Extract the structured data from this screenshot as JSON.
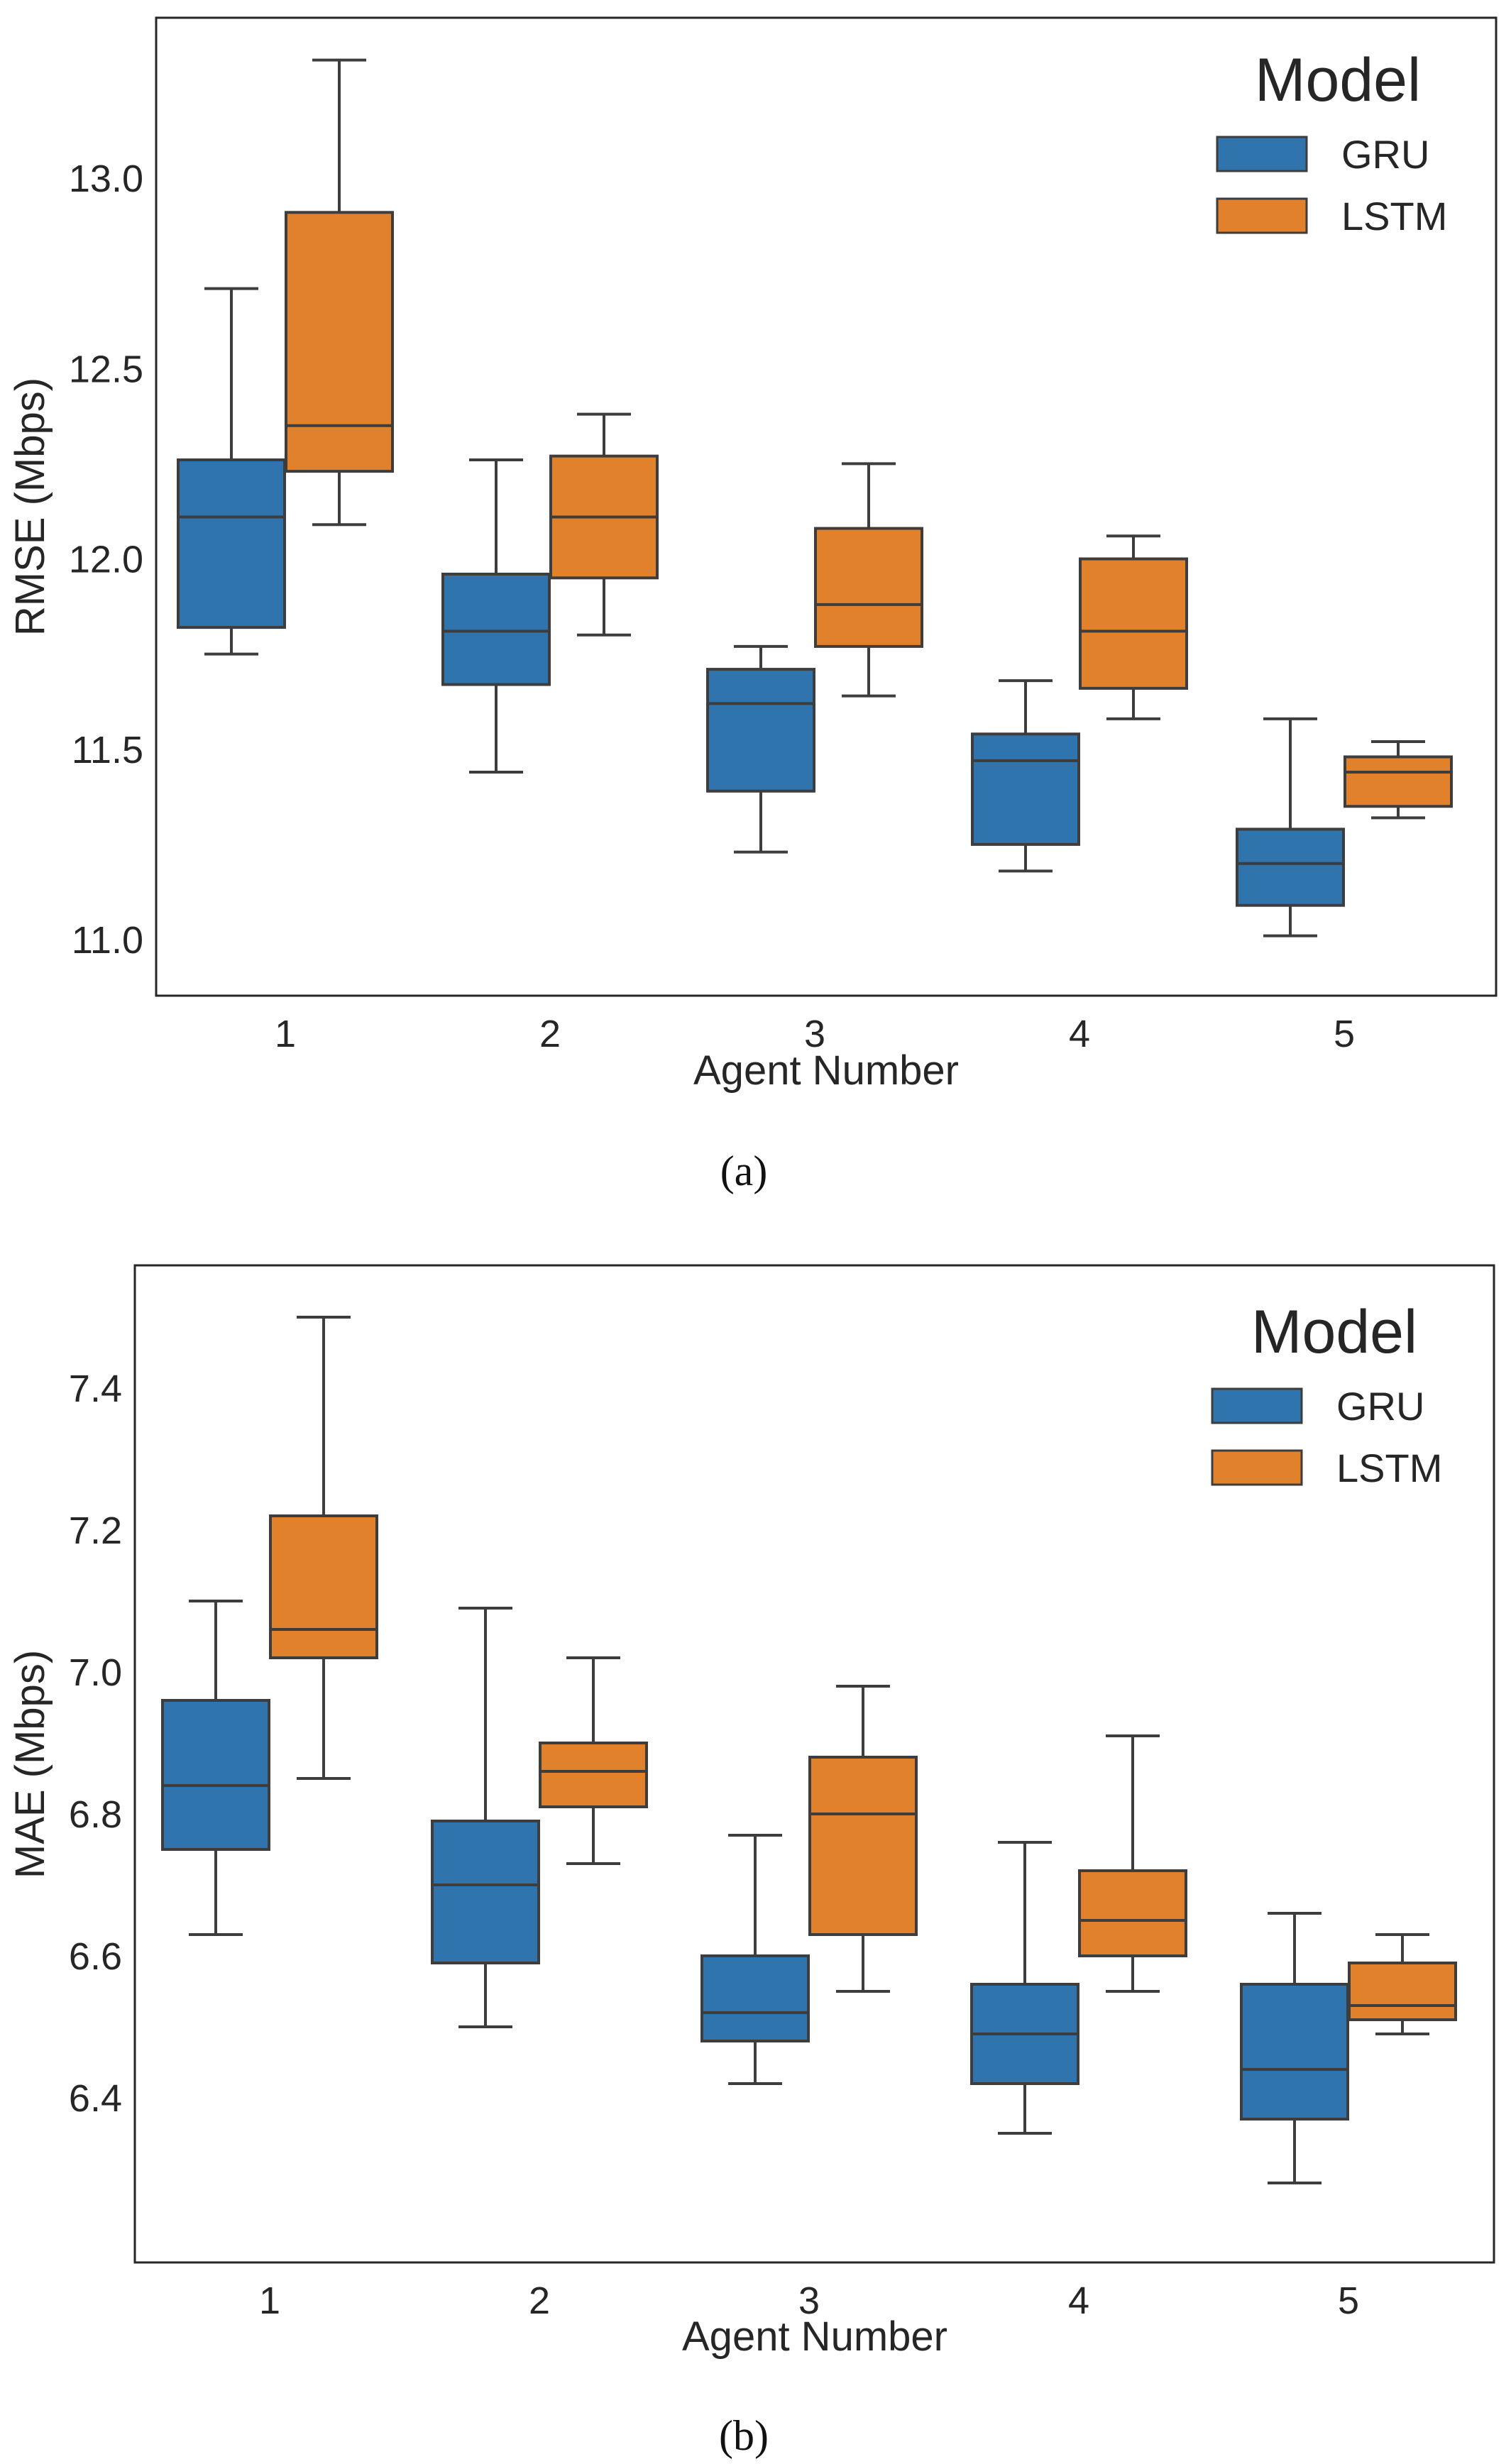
{
  "chart_data": [
    {
      "type": "box",
      "caption": "(a)",
      "xlabel": "Agent Number",
      "ylabel": "RMSE (Mbps)",
      "ylim": [
        10.9,
        13.42
      ],
      "yticks": [
        11.0,
        11.5,
        12.0,
        12.5,
        13.0
      ],
      "ytick_labels": [
        "11.0",
        "11.5",
        "12.0",
        "12.5",
        "13.0"
      ],
      "categories": [
        "1",
        "2",
        "3",
        "4",
        "5"
      ],
      "legend": {
        "title": "Model",
        "placement": "top-right"
      },
      "series": [
        {
          "name": "GRU",
          "color": "#2f74ad",
          "boxes": [
            {
              "whislo": 11.75,
              "q1": 11.82,
              "med": 12.11,
              "q3": 12.26,
              "whishi": 12.71
            },
            {
              "whislo": 11.44,
              "q1": 11.67,
              "med": 11.81,
              "q3": 11.96,
              "whishi": 12.26
            },
            {
              "whislo": 11.23,
              "q1": 11.39,
              "med": 11.62,
              "q3": 11.71,
              "whishi": 11.77
            },
            {
              "whislo": 11.18,
              "q1": 11.25,
              "med": 11.47,
              "q3": 11.54,
              "whishi": 11.68
            },
            {
              "whislo": 11.01,
              "q1": 11.09,
              "med": 11.2,
              "q3": 11.29,
              "whishi": 11.58
            }
          ]
        },
        {
          "name": "LSTM",
          "color": "#e1812c",
          "boxes": [
            {
              "whislo": 12.09,
              "q1": 12.23,
              "med": 12.35,
              "q3": 12.91,
              "whishi": 13.31
            },
            {
              "whislo": 11.8,
              "q1": 11.95,
              "med": 12.11,
              "q3": 12.27,
              "whishi": 12.38
            },
            {
              "whislo": 11.64,
              "q1": 11.77,
              "med": 11.88,
              "q3": 12.08,
              "whishi": 12.25
            },
            {
              "whislo": 11.58,
              "q1": 11.66,
              "med": 11.81,
              "q3": 12.0,
              "whishi": 12.06
            },
            {
              "whislo": 11.32,
              "q1": 11.35,
              "med": 11.44,
              "q3": 11.48,
              "whishi": 11.52
            }
          ]
        }
      ]
    },
    {
      "type": "box",
      "caption": "(b)",
      "xlabel": "Agent Number",
      "ylabel": "MAE (Mbps)",
      "ylim": [
        6.22,
        7.56
      ],
      "yticks": [
        6.4,
        6.6,
        6.8,
        7.0,
        7.2,
        7.4
      ],
      "ytick_labels": [
        "6.4",
        "6.6",
        "6.8",
        "7.0",
        "7.2",
        "7.4"
      ],
      "categories": [
        "1",
        "2",
        "3",
        "4",
        "5"
      ],
      "legend": {
        "title": "Model",
        "placement": "top-right"
      },
      "series": [
        {
          "name": "GRU",
          "color": "#2f74ad",
          "boxes": [
            {
              "whislo": 6.63,
              "q1": 6.75,
              "med": 6.84,
              "q3": 6.96,
              "whishi": 7.1
            },
            {
              "whislo": 6.5,
              "q1": 6.59,
              "med": 6.7,
              "q3": 6.79,
              "whishi": 7.09
            },
            {
              "whislo": 6.42,
              "q1": 6.48,
              "med": 6.52,
              "q3": 6.6,
              "whishi": 6.77
            },
            {
              "whislo": 6.35,
              "q1": 6.42,
              "med": 6.49,
              "q3": 6.56,
              "whishi": 6.76
            },
            {
              "whislo": 6.28,
              "q1": 6.37,
              "med": 6.44,
              "q3": 6.56,
              "whishi": 6.66
            }
          ]
        },
        {
          "name": "LSTM",
          "color": "#e1812c",
          "boxes": [
            {
              "whislo": 6.85,
              "q1": 7.02,
              "med": 7.06,
              "q3": 7.22,
              "whishi": 7.5
            },
            {
              "whislo": 6.73,
              "q1": 6.81,
              "med": 6.86,
              "q3": 6.9,
              "whishi": 7.02
            },
            {
              "whislo": 6.55,
              "q1": 6.63,
              "med": 6.8,
              "q3": 6.88,
              "whishi": 6.98
            },
            {
              "whislo": 6.55,
              "q1": 6.6,
              "med": 6.65,
              "q3": 6.72,
              "whishi": 6.91
            },
            {
              "whislo": 6.49,
              "q1": 6.51,
              "med": 6.53,
              "q3": 6.59,
              "whishi": 6.63
            }
          ]
        }
      ]
    }
  ]
}
